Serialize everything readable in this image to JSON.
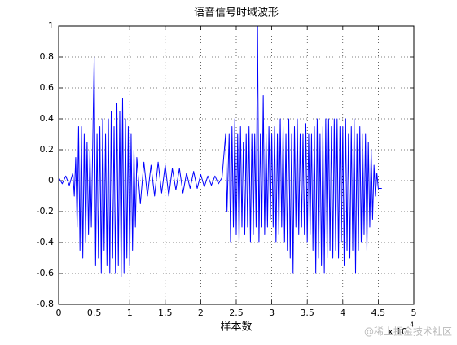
{
  "chart_data": {
    "type": "line",
    "title": "语音信号时域波形",
    "xlabel": "样本数",
    "x_multiplier": {
      "base": "x 10",
      "exponent": "4"
    },
    "xlim": [
      0,
      5
    ],
    "ylim": [
      -0.8,
      1
    ],
    "xticks": [
      0,
      0.5,
      1,
      1.5,
      2,
      2.5,
      3,
      3.5,
      4,
      4.5,
      5
    ],
    "yticks": [
      -0.8,
      -0.6,
      -0.4,
      -0.2,
      0,
      0.2,
      0.4,
      0.6,
      0.8,
      1
    ],
    "grid": true,
    "x": [
      0,
      0.05,
      0.1,
      0.15,
      0.2,
      0.22,
      0.24,
      0.26,
      0.28,
      0.3,
      0.32,
      0.34,
      0.36,
      0.38,
      0.4,
      0.42,
      0.44,
      0.46,
      0.48,
      0.5,
      0.52,
      0.54,
      0.56,
      0.58,
      0.6,
      0.62,
      0.64,
      0.66,
      0.68,
      0.7,
      0.72,
      0.74,
      0.76,
      0.78,
      0.8,
      0.82,
      0.84,
      0.86,
      0.88,
      0.9,
      0.92,
      0.94,
      0.96,
      0.98,
      1,
      1.02,
      1.04,
      1.06,
      1.08,
      1.1,
      1.15,
      1.2,
      1.25,
      1.3,
      1.35,
      1.4,
      1.45,
      1.5,
      1.55,
      1.6,
      1.65,
      1.7,
      1.75,
      1.8,
      1.85,
      1.9,
      1.95,
      2,
      2.05,
      2.1,
      2.15,
      2.2,
      2.25,
      2.3,
      2.35,
      2.37,
      2.4,
      2.42,
      2.44,
      2.46,
      2.48,
      2.5,
      2.52,
      2.54,
      2.56,
      2.58,
      2.6,
      2.62,
      2.64,
      2.66,
      2.68,
      2.7,
      2.72,
      2.74,
      2.76,
      2.78,
      2.8,
      2.82,
      2.84,
      2.86,
      2.88,
      2.9,
      2.92,
      2.94,
      2.96,
      2.98,
      3,
      3.02,
      3.04,
      3.06,
      3.08,
      3.1,
      3.12,
      3.14,
      3.16,
      3.18,
      3.2,
      3.22,
      3.24,
      3.26,
      3.28,
      3.3,
      3.32,
      3.34,
      3.36,
      3.38,
      3.4,
      3.42,
      3.44,
      3.46,
      3.48,
      3.5,
      3.52,
      3.54,
      3.56,
      3.58,
      3.6,
      3.62,
      3.64,
      3.66,
      3.68,
      3.7,
      3.72,
      3.74,
      3.76,
      3.78,
      3.8,
      3.82,
      3.84,
      3.86,
      3.88,
      3.9,
      3.92,
      3.94,
      3.96,
      3.98,
      4,
      4.02,
      4.04,
      4.06,
      4.08,
      4.1,
      4.12,
      4.14,
      4.16,
      4.18,
      4.2,
      4.22,
      4.24,
      4.26,
      4.28,
      4.3,
      4.32,
      4.34,
      4.36,
      4.38,
      4.4,
      4.42,
      4.44,
      4.46,
      4.48,
      4.5,
      4.55
    ],
    "series": [
      {
        "color": "#0000ff",
        "values": [
          0.02,
          -0.02,
          0.03,
          -0.03,
          0.05,
          -0.1,
          0.15,
          -0.3,
          0.35,
          -0.45,
          0.35,
          -0.5,
          0.3,
          -0.4,
          0.25,
          -0.35,
          0.2,
          -0.3,
          0.25,
          0.8,
          -0.55,
          0.3,
          -0.5,
          0.35,
          -0.6,
          0.4,
          -0.45,
          0.3,
          -0.55,
          0.4,
          -0.6,
          0.45,
          -0.5,
          0.35,
          -0.6,
          0.5,
          -0.55,
          0.45,
          -0.62,
          0.53,
          -0.6,
          0.4,
          -0.5,
          0.35,
          -0.55,
          0.3,
          -0.45,
          0.2,
          -0.3,
          0.15,
          -0.15,
          0.12,
          -0.1,
          0.1,
          -0.1,
          0.12,
          -0.08,
          0.1,
          -0.1,
          0.08,
          -0.06,
          0.08,
          -0.08,
          0.05,
          -0.05,
          0.06,
          -0.05,
          0.04,
          -0.04,
          0.03,
          -0.03,
          0.03,
          -0.02,
          0.02,
          0.3,
          -0.2,
          0.3,
          -0.4,
          0.35,
          -0.3,
          0.4,
          -0.35,
          0.3,
          -0.4,
          0.35,
          -0.3,
          0.25,
          -0.35,
          0.3,
          -0.3,
          0.35,
          -0.4,
          0.3,
          -0.35,
          0.3,
          -0.3,
          1,
          -0.4,
          0.3,
          -0.3,
          0.55,
          -0.35,
          0.3,
          -0.3,
          0.35,
          -0.25,
          0.3,
          -0.3,
          0.35,
          -0.4,
          0.3,
          -0.35,
          0.4,
          -0.3,
          0.35,
          -0.4,
          0.3,
          -0.45,
          0.4,
          -0.5,
          0.3,
          -0.6,
          0.35,
          -0.3,
          0.4,
          -0.35,
          0.3,
          -0.3,
          0.3,
          -0.35,
          0.37,
          -0.4,
          0.3,
          -0.35,
          0.3,
          -0.45,
          0.35,
          -0.6,
          0.4,
          -0.5,
          0.3,
          -0.55,
          0.35,
          -0.6,
          0.4,
          -0.5,
          0.4,
          -0.45,
          0.35,
          -0.5,
          0.4,
          -0.45,
          0.4,
          -0.5,
          0.35,
          -0.4,
          0.35,
          -0.55,
          0.4,
          -0.45,
          0.3,
          -0.5,
          0.35,
          -0.45,
          0.4,
          -0.6,
          0.3,
          -0.45,
          0.35,
          -0.4,
          0.3,
          -0.35,
          0.3,
          -0.45,
          0.25,
          -0.3,
          0.2,
          -0.25,
          0.1,
          -0.1,
          0.05,
          -0.05,
          -0.05
        ]
      }
    ]
  },
  "watermark": "@稀土掘金技术社区"
}
